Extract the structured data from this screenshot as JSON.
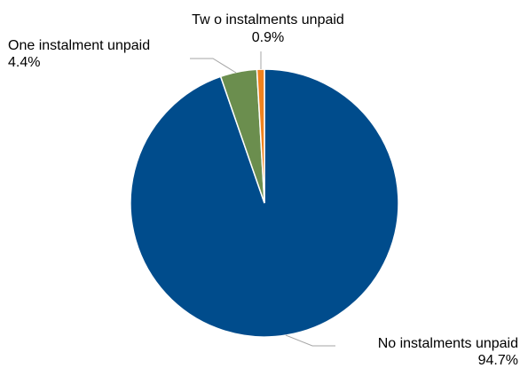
{
  "chart_data": {
    "type": "pie",
    "title": "",
    "slices": [
      {
        "label": "No instalments unpaid",
        "value": 94.7,
        "value_label": "94.7%",
        "color": "#004c8c"
      },
      {
        "label": "One instalment unpaid",
        "value": 4.4,
        "value_label": "4.4%",
        "color": "#6b8e4e"
      },
      {
        "label": "Tw o instalments unpaid",
        "value": 0.9,
        "value_label": "0.9%",
        "color": "#f0821e"
      }
    ],
    "start_angle_deg": 0,
    "direction": "clockwise",
    "legend": "none",
    "data_labels": "outside with leader lines"
  }
}
